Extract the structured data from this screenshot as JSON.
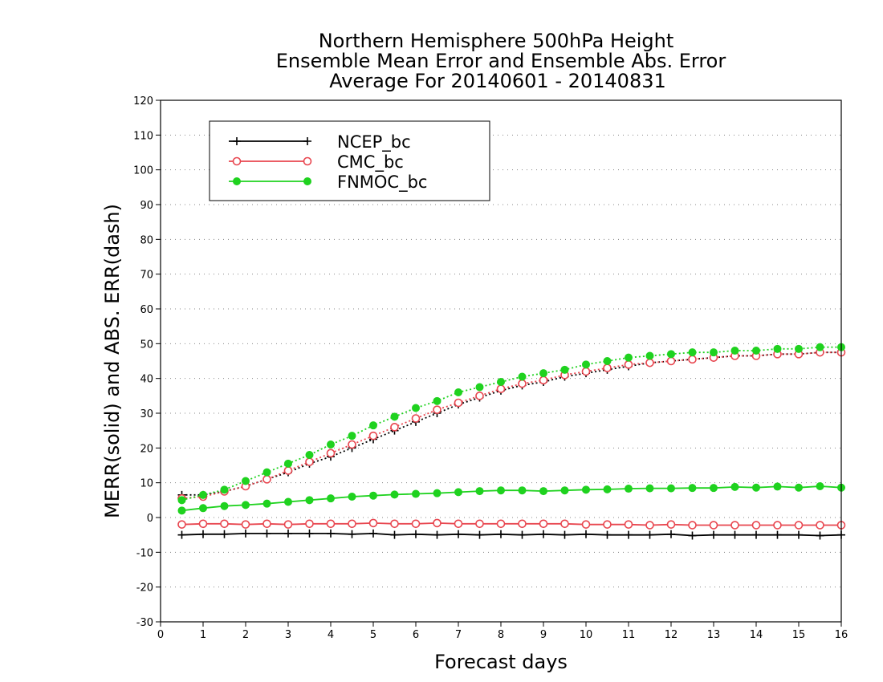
{
  "chart_data": {
    "type": "line",
    "title_lines": [
      "Northern Hemisphere 500hPa Height",
      "Ensemble Mean Error and Ensemble Abs. Error",
      "Average For 20140601 - 20140831"
    ],
    "xlabel": "Forecast days",
    "ylabel": "MERR(solid) and ABS. ERR(dash)",
    "xlim": [
      0,
      16
    ],
    "ylim": [
      -30,
      120
    ],
    "xticks": [
      0,
      1,
      2,
      3,
      4,
      5,
      6,
      7,
      8,
      9,
      10,
      11,
      12,
      13,
      14,
      15,
      16
    ],
    "yticks": [
      -30,
      -20,
      -10,
      0,
      10,
      20,
      30,
      40,
      50,
      60,
      70,
      80,
      90,
      100,
      110,
      120
    ],
    "grid": "horizontal dotted",
    "legend_position": "top-left",
    "x": [
      0.5,
      1,
      1.5,
      2,
      2.5,
      3,
      3.5,
      4,
      4.5,
      5,
      5.5,
      6,
      6.5,
      7,
      7.5,
      8,
      8.5,
      9,
      9.5,
      10,
      10.5,
      11,
      11.5,
      12,
      12.5,
      13,
      13.5,
      14,
      14.5,
      15,
      15.5,
      16
    ],
    "series": [
      {
        "name": "NCEP_bc",
        "color": "#000000",
        "marker": "plus",
        "merr": [
          -5.0,
          -4.8,
          -4.8,
          -4.6,
          -4.6,
          -4.6,
          -4.6,
          -4.6,
          -4.8,
          -4.6,
          -5.0,
          -4.8,
          -5.0,
          -4.8,
          -5.0,
          -4.8,
          -5.0,
          -4.8,
          -5.0,
          -4.8,
          -5.0,
          -5.0,
          -5.0,
          -4.8,
          -5.2,
          -5.0,
          -5.0,
          -5.0,
          -5.0,
          -5.0,
          -5.2,
          -5.0
        ],
        "abs_err": [
          6.5,
          6.5,
          7.5,
          9.0,
          11.0,
          13.0,
          15.5,
          17.5,
          20.0,
          22.5,
          25.0,
          27.5,
          30.0,
          32.5,
          34.5,
          36.5,
          38.0,
          39.0,
          40.5,
          41.5,
          42.5,
          43.5,
          44.5,
          45.0,
          45.5,
          46.0,
          46.5,
          46.5,
          47.0,
          47.0,
          47.5,
          47.5
        ]
      },
      {
        "name": "CMC_bc",
        "color": "#e8464f",
        "marker": "open-circle",
        "merr": [
          -2.0,
          -1.8,
          -1.8,
          -2.0,
          -1.8,
          -2.0,
          -1.8,
          -1.8,
          -1.8,
          -1.6,
          -1.8,
          -1.8,
          -1.6,
          -1.8,
          -1.8,
          -1.8,
          -1.8,
          -1.8,
          -1.8,
          -2.0,
          -2.0,
          -2.0,
          -2.2,
          -2.0,
          -2.2,
          -2.2,
          -2.2,
          -2.2,
          -2.2,
          -2.2,
          -2.2,
          -2.2
        ],
        "abs_err": [
          5.5,
          6.0,
          7.5,
          9.0,
          11.0,
          13.5,
          16.0,
          18.5,
          21.0,
          23.5,
          26.0,
          28.5,
          31.0,
          33.0,
          35.0,
          37.0,
          38.5,
          39.5,
          41.0,
          42.0,
          43.0,
          44.0,
          44.5,
          45.0,
          45.5,
          46.0,
          46.5,
          46.5,
          47.0,
          47.0,
          47.5,
          47.5
        ]
      },
      {
        "name": "FNMOC_bc",
        "color": "#1fd21f",
        "marker": "filled-circle",
        "merr": [
          2.0,
          2.7,
          3.3,
          3.6,
          4.0,
          4.5,
          5.0,
          5.5,
          6.0,
          6.3,
          6.6,
          6.8,
          7.0,
          7.3,
          7.6,
          7.8,
          7.8,
          7.6,
          7.8,
          8.0,
          8.1,
          8.3,
          8.4,
          8.4,
          8.5,
          8.5,
          8.8,
          8.6,
          8.9,
          8.6,
          9.0,
          8.6
        ],
        "abs_err": [
          5.0,
          6.5,
          8.0,
          10.5,
          13.0,
          15.5,
          18.0,
          21.0,
          23.5,
          26.5,
          29.0,
          31.5,
          33.5,
          36.0,
          37.5,
          39.0,
          40.5,
          41.5,
          42.5,
          44.0,
          45.0,
          46.0,
          46.5,
          47.0,
          47.5,
          47.5,
          48.0,
          48.0,
          48.5,
          48.5,
          49.0,
          49.0
        ]
      }
    ]
  }
}
